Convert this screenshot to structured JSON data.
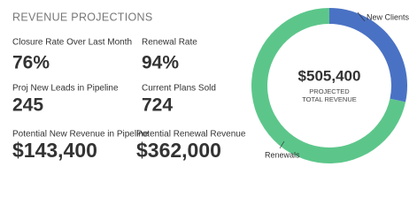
{
  "header": {
    "title": "REVENUE PROJECTIONS"
  },
  "kpis": [
    {
      "label": "Closure Rate Over Last Month",
      "value": "76%"
    },
    {
      "label": "Renewal Rate",
      "value": "94%"
    },
    {
      "label": "Proj New Leads in Pipeline",
      "value": "245"
    },
    {
      "label": "Current Plans Sold",
      "value": "724"
    },
    {
      "label": "Potential New Revenue in Pipeline",
      "value": "$143,400"
    },
    {
      "label": "Potential Renewal Revenue",
      "value": "$362,000"
    }
  ],
  "chart_data": {
    "type": "pie",
    "center_value": "$505,400",
    "center_lines": [
      "PROJECTED",
      "TOTAL REVENUE"
    ],
    "categories": [
      "New Clients",
      "Renewals"
    ],
    "values": [
      143400,
      362000
    ],
    "colors": [
      "#4a72c4",
      "#5cc68a"
    ]
  }
}
